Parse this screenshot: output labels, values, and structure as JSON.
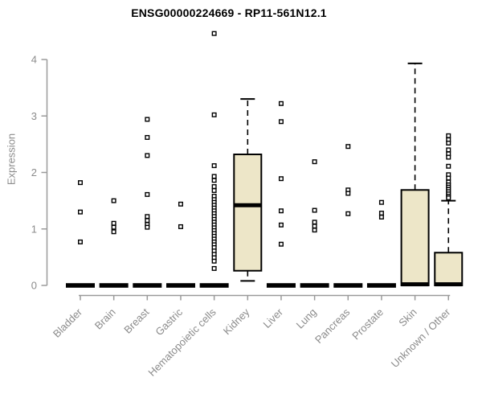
{
  "title": "ENSG00000224669 - RP11-561N12.1",
  "colors": {
    "box_fill": "#EDE6C8",
    "box_stroke": "#000000",
    "axis_line": "#9a9a9a",
    "axis_text": "#8b8b8b",
    "title_text": "#000000"
  },
  "chart_data": {
    "type": "boxplot",
    "title": "ENSG00000224669 - RP11-561N12.1",
    "xlabel": "",
    "ylabel": "Expression",
    "ylim": [
      0,
      4.5
    ],
    "yticks": [
      0,
      1,
      2,
      3,
      4
    ],
    "grid": false,
    "categories": [
      "Bladder",
      "Brain",
      "Breast",
      "Gastric",
      "Hematopoietic cells",
      "Kidney",
      "Liver",
      "Lung",
      "Pancreas",
      "Prostate",
      "Skin",
      "Unknown / Other"
    ],
    "series": [
      {
        "label": "Bladder",
        "box": {
          "low": 0,
          "q1": 0,
          "median": 0,
          "q3": 0,
          "high": 0
        },
        "outliers": [
          1.82,
          1.3,
          0.77
        ]
      },
      {
        "label": "Brain",
        "box": {
          "low": 0,
          "q1": 0,
          "median": 0,
          "q3": 0,
          "high": 0
        },
        "outliers": [
          1.5,
          1.1,
          1.03,
          0.95
        ]
      },
      {
        "label": "Breast",
        "box": {
          "low": 0,
          "q1": 0,
          "median": 0,
          "q3": 0,
          "high": 0
        },
        "outliers": [
          2.94,
          2.62,
          2.3,
          1.61,
          1.22,
          1.15,
          1.08,
          1.03
        ]
      },
      {
        "label": "Gastric",
        "box": {
          "low": 0,
          "q1": 0,
          "median": 0,
          "q3": 0,
          "high": 0
        },
        "outliers": [
          1.44,
          1.04
        ]
      },
      {
        "label": "Hematopoietic cells",
        "box": {
          "low": 0,
          "q1": 0,
          "median": 0,
          "q3": 0,
          "high": 0
        },
        "outliers": [
          4.46,
          3.02,
          2.12,
          1.93,
          1.86,
          1.75,
          1.68,
          1.58,
          1.52,
          1.47,
          1.42,
          1.37,
          1.32,
          1.27,
          1.22,
          1.17,
          1.12,
          1.07,
          1.02,
          0.97,
          0.92,
          0.87,
          0.82,
          0.77,
          0.72,
          0.67,
          0.61,
          0.55,
          0.49,
          0.43,
          0.3
        ]
      },
      {
        "label": "Kidney",
        "box": {
          "low": 0.08,
          "q1": 0.26,
          "median": 1.42,
          "q3": 2.32,
          "high": 3.3
        },
        "outliers": []
      },
      {
        "label": "Liver",
        "box": {
          "low": 0,
          "q1": 0,
          "median": 0,
          "q3": 0,
          "high": 0
        },
        "outliers": [
          3.22,
          2.9,
          1.89,
          1.32,
          1.07,
          0.73
        ]
      },
      {
        "label": "Lung",
        "box": {
          "low": 0,
          "q1": 0,
          "median": 0,
          "q3": 0,
          "high": 0
        },
        "outliers": [
          2.19,
          1.33,
          1.12,
          1.05,
          0.98
        ]
      },
      {
        "label": "Pancreas",
        "box": {
          "low": 0,
          "q1": 0,
          "median": 0,
          "q3": 0,
          "high": 0
        },
        "outliers": [
          2.46,
          1.69,
          1.63,
          1.27
        ]
      },
      {
        "label": "Prostate",
        "box": {
          "low": 0,
          "q1": 0,
          "median": 0,
          "q3": 0,
          "high": 0
        },
        "outliers": [
          1.47,
          1.28,
          1.21
        ]
      },
      {
        "label": "Skin",
        "box": {
          "low": 0,
          "q1": 0,
          "median": 0.02,
          "q3": 1.69,
          "high": 3.93
        },
        "outliers": []
      },
      {
        "label": "Unknown / Other",
        "box": {
          "low": 0,
          "q1": 0,
          "median": 0.02,
          "q3": 0.58,
          "high": 1.5
        },
        "outliers": [
          2.65,
          2.58,
          2.52,
          2.4,
          2.33,
          2.27,
          2.11,
          1.96,
          1.9,
          1.83,
          1.78,
          1.74,
          1.7,
          1.66,
          1.62,
          1.58,
          1.55
        ]
      }
    ]
  }
}
